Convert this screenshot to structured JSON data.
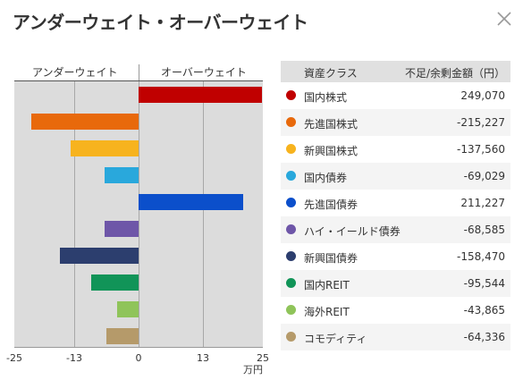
{
  "dialog": {
    "title": "アンダーウェイト・オーバーウェイト",
    "close_icon": "close-icon"
  },
  "colors": {
    "plot_background": "#dcdcdc",
    "gridline": "#a8a8a8"
  },
  "legend": {
    "col_asset": "資産クラス",
    "col_amount": "不足/余剰金額（円）",
    "rows": [
      {
        "name": "国内株式",
        "amount": "249,070",
        "color": "#c00000"
      },
      {
        "name": "先進国株式",
        "amount": "-215,227",
        "color": "#e8690b"
      },
      {
        "name": "新興国株式",
        "amount": "-137,560",
        "color": "#f7b31e"
      },
      {
        "name": "国内債券",
        "amount": "-69,029",
        "color": "#29a8dc"
      },
      {
        "name": "先進国債券",
        "amount": "211,227",
        "color": "#0b4fcb"
      },
      {
        "name": "ハイ・イールド債券",
        "amount": "-68,585",
        "color": "#6e56a8"
      },
      {
        "name": "新興国債券",
        "amount": "-158,470",
        "color": "#2c3e6e"
      },
      {
        "name": "国内REIT",
        "amount": "-95,544",
        "color": "#119458"
      },
      {
        "name": "海外REIT",
        "amount": "-43,865",
        "color": "#8fc45a"
      },
      {
        "name": "コモディティ",
        "amount": "-64,336",
        "color": "#b59a6a"
      }
    ]
  },
  "chart_data": {
    "type": "bar",
    "orientation": "horizontal",
    "header_left": "アンダーウェイト",
    "header_right": "オーバーウェイト",
    "unit": "万円",
    "xlim": [
      -25,
      25
    ],
    "ticks": [
      -25,
      -13,
      0,
      13,
      25
    ],
    "tick_labels": [
      "-25",
      "-13",
      "0",
      "13",
      "25"
    ],
    "categories": [
      "国内株式",
      "先進国株式",
      "新興国株式",
      "国内債券",
      "先進国債券",
      "ハイ・イールド債券",
      "新興国債券",
      "国内REIT",
      "海外REIT",
      "コモディティ"
    ],
    "values": [
      24.907,
      -21.5227,
      -13.756,
      -6.9029,
      21.1227,
      -6.8585,
      -15.847,
      -9.5544,
      -4.3865,
      -6.4336
    ],
    "colors": [
      "#c00000",
      "#e8690b",
      "#f7b31e",
      "#29a8dc",
      "#0b4fcb",
      "#6e56a8",
      "#2c3e6e",
      "#119458",
      "#8fc45a",
      "#b59a6a"
    ],
    "grid": true
  }
}
